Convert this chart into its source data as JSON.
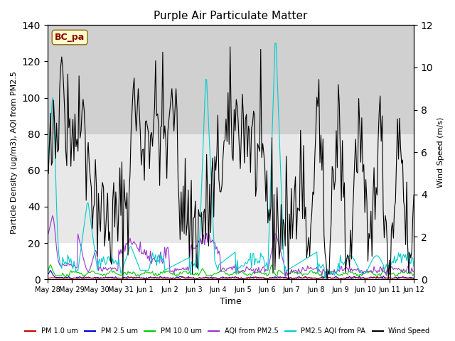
{
  "title": "Purple Air Particulate Matter",
  "xlabel": "Time",
  "ylabel_left": "Particle Density (ug/m3), AQI from PM2.5",
  "ylabel_right": "Wind Speed (m/s)",
  "station_label": "BC_pa",
  "ylim_left": [
    0,
    140
  ],
  "ylim_right": [
    0,
    12
  ],
  "yticks_left": [
    0,
    20,
    40,
    60,
    80,
    100,
    120,
    140
  ],
  "yticks_right": [
    0,
    2,
    4,
    6,
    8,
    10,
    12
  ],
  "x_tick_labels": [
    "May 28",
    "May 29",
    "May 30",
    "May 31",
    "Jun 1",
    "Jun 2",
    "Jun 3",
    "Jun 4",
    "Jun 5",
    "Jun 6",
    "Jun 7",
    "Jun 8",
    "Jun 9",
    "Jun 10",
    "Jun 11",
    "Jun 12"
  ],
  "bg_bands": [
    {
      "ymin": 0,
      "ymax": 20,
      "color": "#ffffff"
    },
    {
      "ymin": 20,
      "ymax": 80,
      "color": "#e8e8e8"
    },
    {
      "ymin": 80,
      "ymax": 140,
      "color": "#d0d0d0"
    }
  ],
  "colors": {
    "pm1": "#cc0000",
    "pm25": "#0000cc",
    "pm10": "#00cc00",
    "aqi_pm25": "#9933cc",
    "pa_aqi": "#00cccc",
    "wind": "#000000"
  },
  "legend": [
    {
      "label": "PM 1.0 um",
      "color": "#cc0000"
    },
    {
      "label": "PM 2.5 um",
      "color": "#0000cc"
    },
    {
      "label": "PM 10.0 um",
      "color": "#00cc00"
    },
    {
      "label": "AQI from PM2.5",
      "color": "#9933cc"
    },
    {
      "label": "PM2.5 AQI from PA",
      "color": "#00cccc"
    },
    {
      "label": "Wind Speed",
      "color": "#000000"
    }
  ]
}
